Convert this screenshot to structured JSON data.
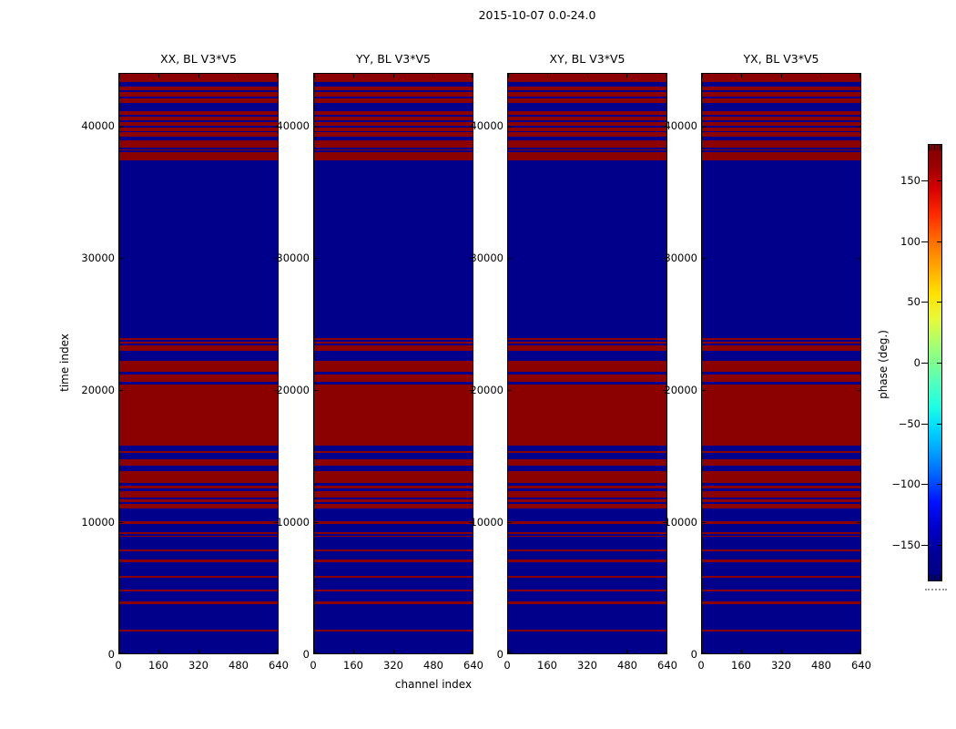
{
  "figure": {
    "title": "2015-10-07 0.0-24.0"
  },
  "chart_data": {
    "type": "heatmap",
    "title": "2015-10-07 0.0-24.0",
    "panels": [
      {
        "title": "XX, BL V3*V5"
      },
      {
        "title": "YY, BL V3*V5"
      },
      {
        "title": "XY, BL V3*V5"
      },
      {
        "title": "YX, BL V3*V5"
      }
    ],
    "xlabel": "channel index",
    "ylabel": "time index",
    "x_ticks": [
      0,
      160,
      320,
      480,
      640
    ],
    "x_range": [
      0,
      640
    ],
    "y_ticks": [
      0,
      10000,
      20000,
      30000,
      40000
    ],
    "y_range": [
      0,
      44000
    ],
    "colors": {
      "phase_plus_180": "#8b0000",
      "phase_minus_180": "#00008b"
    },
    "band_value_deg": 180,
    "background_value_deg": -180,
    "red_bands_time_index": [
      [
        43350,
        44000
      ],
      [
        42760,
        43050
      ],
      [
        42290,
        42640
      ],
      [
        41790,
        42160
      ],
      [
        40870,
        41170
      ],
      [
        40460,
        40760
      ],
      [
        40070,
        40350
      ],
      [
        39680,
        39950
      ],
      [
        39260,
        39560
      ],
      [
        38420,
        39000
      ],
      [
        38170,
        38300
      ],
      [
        37430,
        38050
      ],
      [
        23840,
        23980
      ],
      [
        23610,
        23750
      ],
      [
        23020,
        23480
      ],
      [
        21410,
        22260
      ],
      [
        20720,
        21270
      ],
      [
        15830,
        20490
      ],
      [
        15300,
        15440
      ],
      [
        14340,
        14840
      ],
      [
        13010,
        13930
      ],
      [
        12620,
        12830
      ],
      [
        11930,
        12410
      ],
      [
        11590,
        11830
      ],
      [
        11130,
        11480
      ],
      [
        9900,
        10150
      ],
      [
        9170,
        9290
      ],
      [
        8950,
        9070
      ],
      [
        7850,
        7990
      ],
      [
        7020,
        7230
      ],
      [
        5850,
        6000
      ],
      [
        4820,
        4960
      ],
      [
        3860,
        4060
      ],
      [
        1790,
        1930
      ]
    ]
  },
  "colorbar": {
    "label": "phase (deg.)",
    "tick_labels": [
      "150",
      "100",
      "50",
      "0",
      "−50",
      "−100",
      "−150"
    ],
    "tick_values": [
      150,
      100,
      50,
      0,
      -50,
      -100,
      -150
    ],
    "value_range": [
      -180,
      180
    ],
    "colormap": "jet",
    "gradient": [
      {
        "p": 0.0,
        "c": "#7f0000"
      },
      {
        "p": 0.05,
        "c": "#9b0000"
      },
      {
        "p": 0.1,
        "c": "#d40000"
      },
      {
        "p": 0.16,
        "c": "#ff2a00"
      },
      {
        "p": 0.22,
        "c": "#ff6d00"
      },
      {
        "p": 0.28,
        "c": "#ffa600"
      },
      {
        "p": 0.34,
        "c": "#ffe000"
      },
      {
        "p": 0.4,
        "c": "#e8f939"
      },
      {
        "p": 0.46,
        "c": "#a4ff73"
      },
      {
        "p": 0.5,
        "c": "#7dff8e"
      },
      {
        "p": 0.54,
        "c": "#56ffb9"
      },
      {
        "p": 0.6,
        "c": "#1fffe2"
      },
      {
        "p": 0.65,
        "c": "#00d8ff"
      },
      {
        "p": 0.7,
        "c": "#00a6ff"
      },
      {
        "p": 0.76,
        "c": "#0061ff"
      },
      {
        "p": 0.82,
        "c": "#0011ff"
      },
      {
        "p": 0.88,
        "c": "#0000c8"
      },
      {
        "p": 0.94,
        "c": "#000096"
      },
      {
        "p": 1.0,
        "c": "#00007f"
      }
    ]
  }
}
